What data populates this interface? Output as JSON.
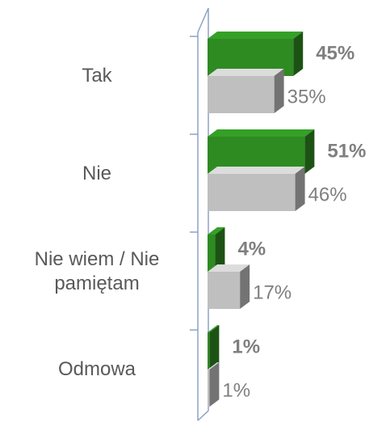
{
  "chart_data": {
    "type": "bar3d",
    "orientation": "horizontal",
    "categories": [
      "Tak",
      "Nie",
      "Nie wiem / Nie pamiętam",
      "Odmowa"
    ],
    "series": [
      {
        "color": "#2e8b22",
        "values": [
          45,
          51,
          4,
          1
        ],
        "value_labels": [
          "45%",
          "51%",
          "4%",
          "1%"
        ]
      },
      {
        "color": "#bfbfbf",
        "values": [
          35,
          46,
          17,
          1
        ],
        "value_labels": [
          "35%",
          "46%",
          "17%",
          "1%"
        ]
      }
    ]
  }
}
